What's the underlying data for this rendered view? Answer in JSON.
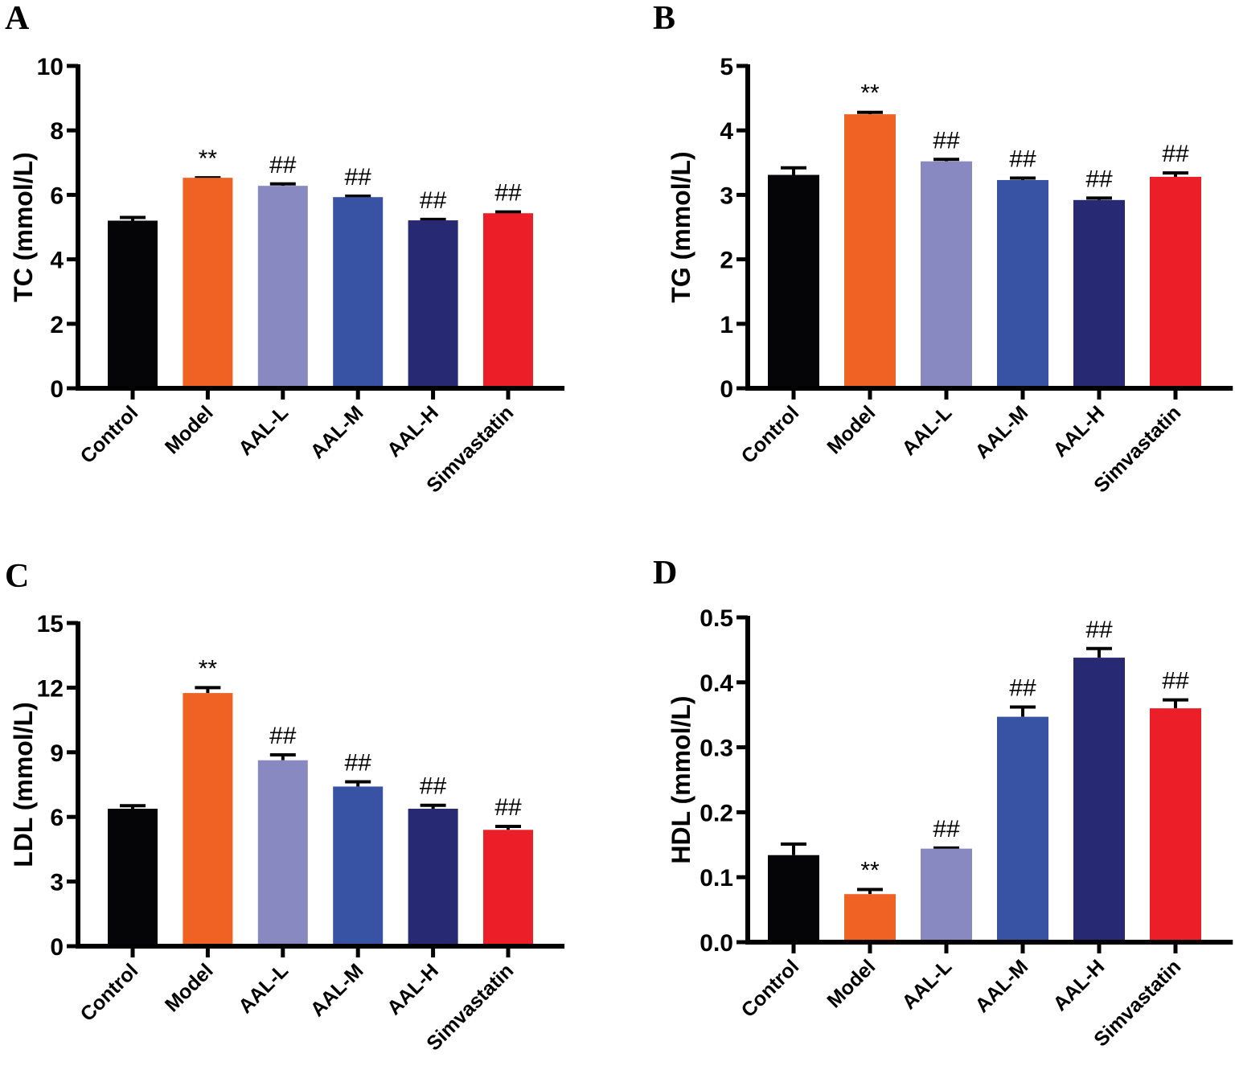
{
  "chart_data": [
    {
      "panel": "A",
      "type": "bar",
      "title": "",
      "xlabel": "",
      "ylabel": "TC (mmol/L)",
      "ylim": [
        0,
        10
      ],
      "yticks": [
        0,
        2,
        4,
        6,
        8,
        10
      ],
      "categories": [
        "Control",
        "Model",
        "AAL-L",
        "AAL-M",
        "AAL-H",
        "Simvastatin"
      ],
      "values": [
        5.2,
        6.53,
        6.28,
        5.93,
        5.21,
        5.43
      ],
      "errors": [
        0.1,
        0.0,
        0.06,
        0.03,
        0.03,
        0.04
      ],
      "annotations": [
        "",
        "**",
        "##",
        "##",
        "##",
        "##"
      ],
      "colors": [
        "#050507",
        "#F06124",
        "#8989C2",
        "#3953A4",
        "#272A72",
        "#EC1E27"
      ],
      "grid": false
    },
    {
      "panel": "B",
      "type": "bar",
      "title": "",
      "xlabel": "",
      "ylabel": "TG (mmol/L)",
      "ylim": [
        0,
        5
      ],
      "yticks": [
        0,
        1,
        2,
        3,
        4,
        5
      ],
      "categories": [
        "Control",
        "Model",
        "AAL-L",
        "AAL-M",
        "AAL-H",
        "Simvastatin"
      ],
      "values": [
        3.31,
        4.25,
        3.52,
        3.23,
        2.92,
        3.28
      ],
      "errors": [
        0.11,
        0.03,
        0.03,
        0.03,
        0.03,
        0.06
      ],
      "annotations": [
        "",
        "**",
        "##",
        "##",
        "##",
        "##"
      ],
      "colors": [
        "#050507",
        "#F06124",
        "#8989C2",
        "#3953A4",
        "#272A72",
        "#EC1E27"
      ],
      "grid": false
    },
    {
      "panel": "C",
      "type": "bar",
      "title": "",
      "xlabel": "",
      "ylabel": "LDL (mmol/L)",
      "ylim": [
        0,
        15
      ],
      "yticks": [
        0,
        3,
        6,
        9,
        12,
        15
      ],
      "categories": [
        "Control",
        "Model",
        "AAL-L",
        "AAL-M",
        "AAL-H",
        "Simvastatin"
      ],
      "values": [
        6.38,
        11.75,
        8.63,
        7.41,
        6.38,
        5.4
      ],
      "errors": [
        0.14,
        0.25,
        0.25,
        0.22,
        0.16,
        0.16
      ],
      "annotations": [
        "",
        "**",
        "##",
        "##",
        "##",
        "##"
      ],
      "colors": [
        "#050507",
        "#F06124",
        "#8989C2",
        "#3953A4",
        "#272A72",
        "#EC1E27"
      ],
      "grid": false
    },
    {
      "panel": "D",
      "type": "bar",
      "title": "",
      "xlabel": "",
      "ylabel": "HDL (mmol/L)",
      "ylim": [
        0,
        0.5
      ],
      "yticks": [
        "0.0",
        "0.1",
        "0.2",
        "0.3",
        "0.4",
        "0.5"
      ],
      "categories": [
        "Control",
        "Model",
        "AAL-L",
        "AAL-M",
        "AAL-H",
        "Simvastatin"
      ],
      "values": [
        0.134,
        0.074,
        0.144,
        0.347,
        0.438,
        0.36
      ],
      "errors": [
        0.017,
        0.007,
        0.001,
        0.015,
        0.014,
        0.013
      ],
      "annotations": [
        "",
        "**",
        "##",
        "##",
        "##",
        "##"
      ],
      "colors": [
        "#050507",
        "#F06124",
        "#8989C2",
        "#3953A4",
        "#272A72",
        "#EC1E27"
      ],
      "grid": false
    }
  ]
}
